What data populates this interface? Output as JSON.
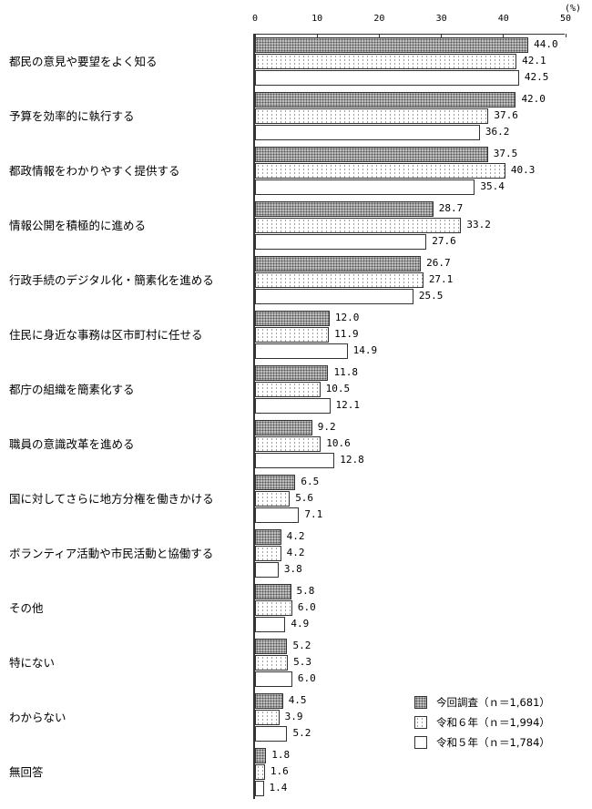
{
  "chart_data": {
    "type": "bar",
    "orientation": "horizontal",
    "title": "",
    "xlabel": "",
    "ylabel": "",
    "unit": "(%)",
    "xlim": [
      0,
      50
    ],
    "x_ticks": [
      "0",
      "10",
      "20",
      "30",
      "40",
      "50"
    ],
    "grid": false,
    "legend_position": "lower right",
    "categories": [
      "都民の意見や要望をよく知る",
      "予算を効率的に執行する",
      "都政情報をわかりやすく提供する",
      "情報公開を積極的に進める",
      "行政手続のデジタル化・簡素化を進める",
      "住民に身近な事務は区市町村に任せる",
      "都庁の組織を簡素化する",
      "職員の意識改革を進める",
      "国に対してさらに地方分権を働きかける",
      "ボランティア活動や市民活動と協働する",
      "その他",
      "特にない",
      "わからない",
      "無回答"
    ],
    "series": [
      {
        "name": "今回調査（ｎ＝1,681）",
        "values": [
          44.0,
          42.0,
          37.5,
          28.7,
          26.7,
          12.0,
          11.8,
          9.2,
          6.5,
          4.2,
          5.8,
          5.2,
          4.5,
          1.8
        ]
      },
      {
        "name": "令和６年（ｎ＝1,994）",
        "values": [
          42.1,
          37.6,
          40.3,
          33.2,
          27.1,
          11.9,
          10.5,
          10.6,
          5.6,
          4.2,
          6.0,
          5.3,
          3.9,
          1.6
        ]
      },
      {
        "name": "令和５年（ｎ＝1,784）",
        "values": [
          42.5,
          36.2,
          35.4,
          27.6,
          25.5,
          14.9,
          12.1,
          12.8,
          7.1,
          3.8,
          4.9,
          6.0,
          5.2,
          1.4
        ]
      }
    ]
  }
}
